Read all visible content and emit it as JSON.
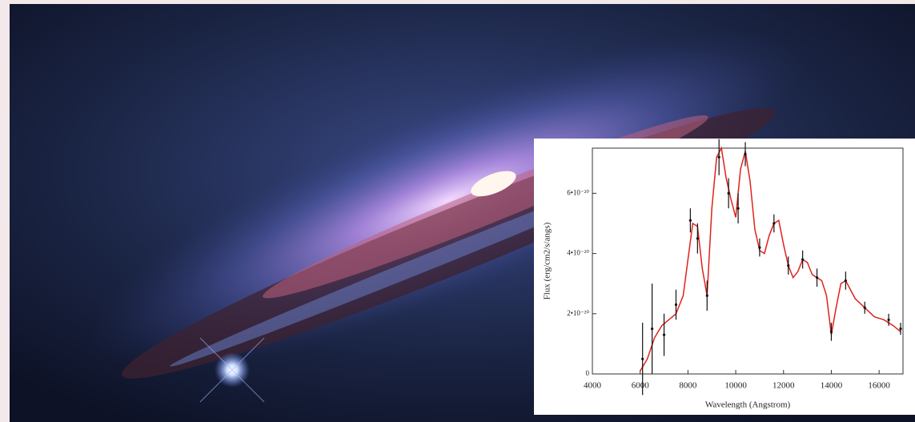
{
  "chart_data": {
    "type": "line",
    "xlabel": "Wavelength (Angstrom)",
    "ylabel": "Flux (erg/cm2/s/angs)",
    "xlim": [
      4000,
      17000
    ],
    "ylim": [
      0,
      7.5e-20
    ],
    "xticks": [
      4000,
      6000,
      8000,
      10000,
      12000,
      14000,
      16000
    ],
    "yticks": [
      0,
      {
        "value": 2e-20,
        "label": "2•10⁻²⁰"
      },
      {
        "value": 4e-20,
        "label": "4•10⁻²⁰"
      },
      {
        "value": 6e-20,
        "label": "6•10⁻²⁰"
      }
    ],
    "series": [
      {
        "color": "#e0211b",
        "style": "line",
        "x": [
          6000,
          6300,
          6600,
          6900,
          7200,
          7500,
          7800,
          8000,
          8200,
          8400,
          8600,
          8800,
          9000,
          9200,
          9400,
          9600,
          9800,
          10000,
          10200,
          10400,
          10600,
          10800,
          11000,
          11200,
          11400,
          11600,
          11800,
          12000,
          12200,
          12400,
          12600,
          12800,
          13000,
          13200,
          13400,
          13600,
          13800,
          14000,
          14200,
          14400,
          14600,
          14800,
          15000,
          15400,
          15800,
          16200,
          16600,
          16900
        ],
        "values": [
          1e-21,
          5e-21,
          1.2e-20,
          1.6e-20,
          1.8e-20,
          2e-20,
          2.6e-20,
          3.8e-20,
          5e-20,
          4.9e-20,
          3.5e-20,
          2.6e-20,
          5.5e-20,
          7.2e-20,
          7.5e-20,
          6.5e-20,
          5.8e-20,
          5.2e-20,
          6.8e-20,
          7.4e-20,
          6.4e-20,
          4.8e-20,
          4.1e-20,
          4e-20,
          4.6e-20,
          5e-20,
          5.1e-20,
          4.3e-20,
          3.6e-20,
          3.2e-20,
          3.4e-20,
          3.8e-20,
          3.7e-20,
          3.3e-20,
          3.2e-20,
          3.1e-20,
          2.6e-20,
          1.3e-20,
          2.2e-20,
          3e-20,
          3.1e-20,
          2.8e-20,
          2.5e-20,
          2.2e-20,
          1.9e-20,
          1.8e-20,
          1.6e-20,
          1.4e-20
        ]
      },
      {
        "color": "#111111",
        "style": "errorbar",
        "x": [
          6100,
          6500,
          7000,
          7500,
          8100,
          8400,
          8800,
          9300,
          9700,
          10100,
          10400,
          11000,
          11600,
          12200,
          12800,
          13400,
          14000,
          14600,
          15400,
          16400,
          16900
        ],
        "values": [
          5e-21,
          1.5e-20,
          1.3e-20,
          2.3e-20,
          5.1e-20,
          4.5e-20,
          2.6e-20,
          7.2e-20,
          6e-20,
          5.5e-20,
          7.3e-20,
          4.2e-20,
          5e-20,
          3.6e-20,
          3.8e-20,
          3.2e-20,
          1.4e-20,
          3.1e-20,
          2.2e-20,
          1.8e-20,
          1.5e-20
        ],
        "errors": [
          1.2e-20,
          1.5e-20,
          7e-21,
          5e-21,
          4e-21,
          5e-21,
          5e-21,
          6e-21,
          5e-21,
          5e-21,
          4e-21,
          3e-21,
          3e-21,
          3e-21,
          3e-21,
          3e-21,
          3e-21,
          3e-21,
          2e-21,
          2e-21,
          2e-21
        ]
      }
    ]
  }
}
